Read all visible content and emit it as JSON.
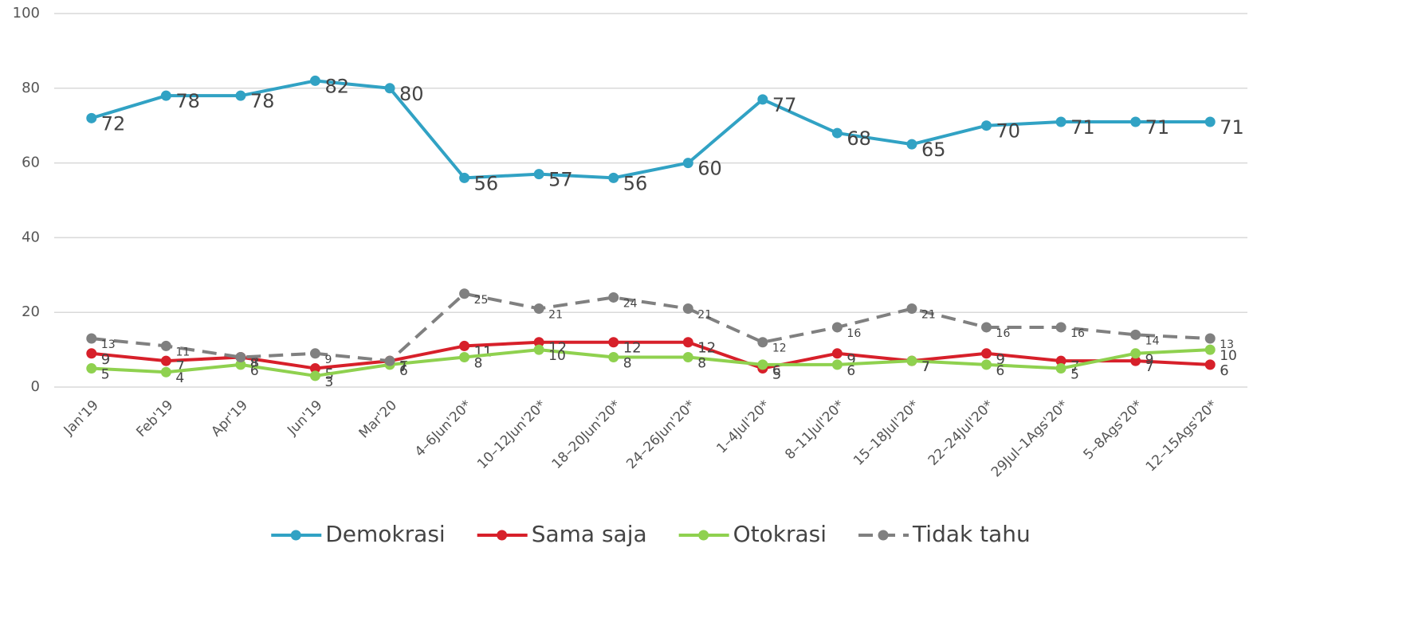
{
  "chart_data": {
    "type": "line",
    "categories": [
      "Jan'19",
      "Feb'19",
      "Apr'19",
      "Jun'19",
      "Mar'20",
      "4–6Jun'20*",
      "10–12Jun'20*",
      "18–20Jun'20*",
      "24–26Jun'20*",
      "1–4Jul'20*",
      "8–11Jul'20*",
      "15–18Jul'20*",
      "22–24Jul'20*",
      "29Jul–1Ags'20*",
      "5–8Ags'20*",
      "12–15Ags'20*"
    ],
    "series": [
      {
        "name": "Demokrasi",
        "color": "#31a2c4",
        "line_style": "solid",
        "values": [
          72,
          78,
          78,
          82,
          80,
          56,
          57,
          56,
          60,
          77,
          68,
          65,
          70,
          71,
          71,
          71
        ]
      },
      {
        "name": "Sama saja",
        "color": "#d7202a",
        "line_style": "solid",
        "values": [
          9,
          7,
          8,
          5,
          7,
          11,
          12,
          12,
          12,
          5,
          9,
          7,
          9,
          7,
          7,
          6
        ]
      },
      {
        "name": "Otokrasi",
        "color": "#8fd14f",
        "line_style": "solid",
        "values": [
          5,
          4,
          6,
          3,
          6,
          8,
          10,
          8,
          8,
          6,
          6,
          7,
          6,
          5,
          9,
          10
        ]
      },
      {
        "name": "Tidak tahu",
        "color": "#808080",
        "line_style": "dashed",
        "values": [
          13,
          11,
          8,
          9,
          7,
          25,
          21,
          24,
          21,
          12,
          16,
          21,
          16,
          16,
          14,
          13
        ]
      }
    ],
    "ylim": [
      0,
      100
    ],
    "yticks": [
      0,
      20,
      40,
      60,
      80,
      100
    ],
    "grid": true,
    "legend": "bottom"
  }
}
